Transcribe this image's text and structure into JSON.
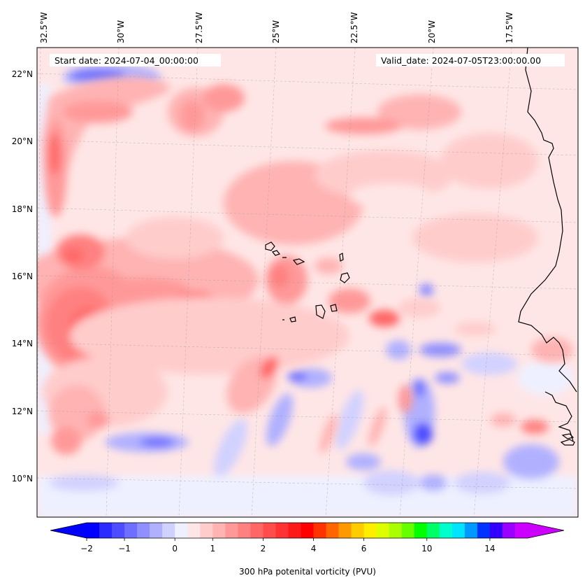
{
  "map": {
    "start_date": "Start date: 2024-07-04_00:00:00",
    "valid_date": "Valid_date: 2024-07-05T23:00:00.00",
    "lon_labels": [
      "32.5°W",
      "30°W",
      "27.5°W",
      "25°W",
      "22.5°W",
      "20°W",
      "17.5°W"
    ],
    "lat_labels": [
      "22°N",
      "20°N",
      "18°N",
      "16°N",
      "14°N",
      "12°N",
      "10°N"
    ],
    "coastline_color": "#000000",
    "gridlines": true
  },
  "colorbar": {
    "label": "300 hPa potenital vorticity (PVU)",
    "tick_labels": [
      "−2",
      "−1",
      "0",
      "1",
      "2",
      "4",
      "6",
      "10",
      "14"
    ],
    "colors": [
      "#0000ff",
      "#2b2bff",
      "#4d4dff",
      "#6e6eff",
      "#8f8fff",
      "#b0b0ff",
      "#d1d1ff",
      "#eef0ff",
      "#ffe6e6",
      "#ffcccc",
      "#ffb3b3",
      "#ff9999",
      "#ff8080",
      "#ff6666",
      "#ff4d4d",
      "#ff3333",
      "#ff1a1a",
      "#ff0000",
      "#ff3300",
      "#ff6600",
      "#ff9900",
      "#ffcc00",
      "#ffee00",
      "#ddff00",
      "#aaff00",
      "#66ff00",
      "#00ff00",
      "#00ff66",
      "#00ffcc",
      "#00e5ff",
      "#0099ff",
      "#0033ff",
      "#3300ff",
      "#9900ff",
      "#cc00ff"
    ],
    "under_color": "#0000ff",
    "over_color": "#cc00ff"
  }
}
